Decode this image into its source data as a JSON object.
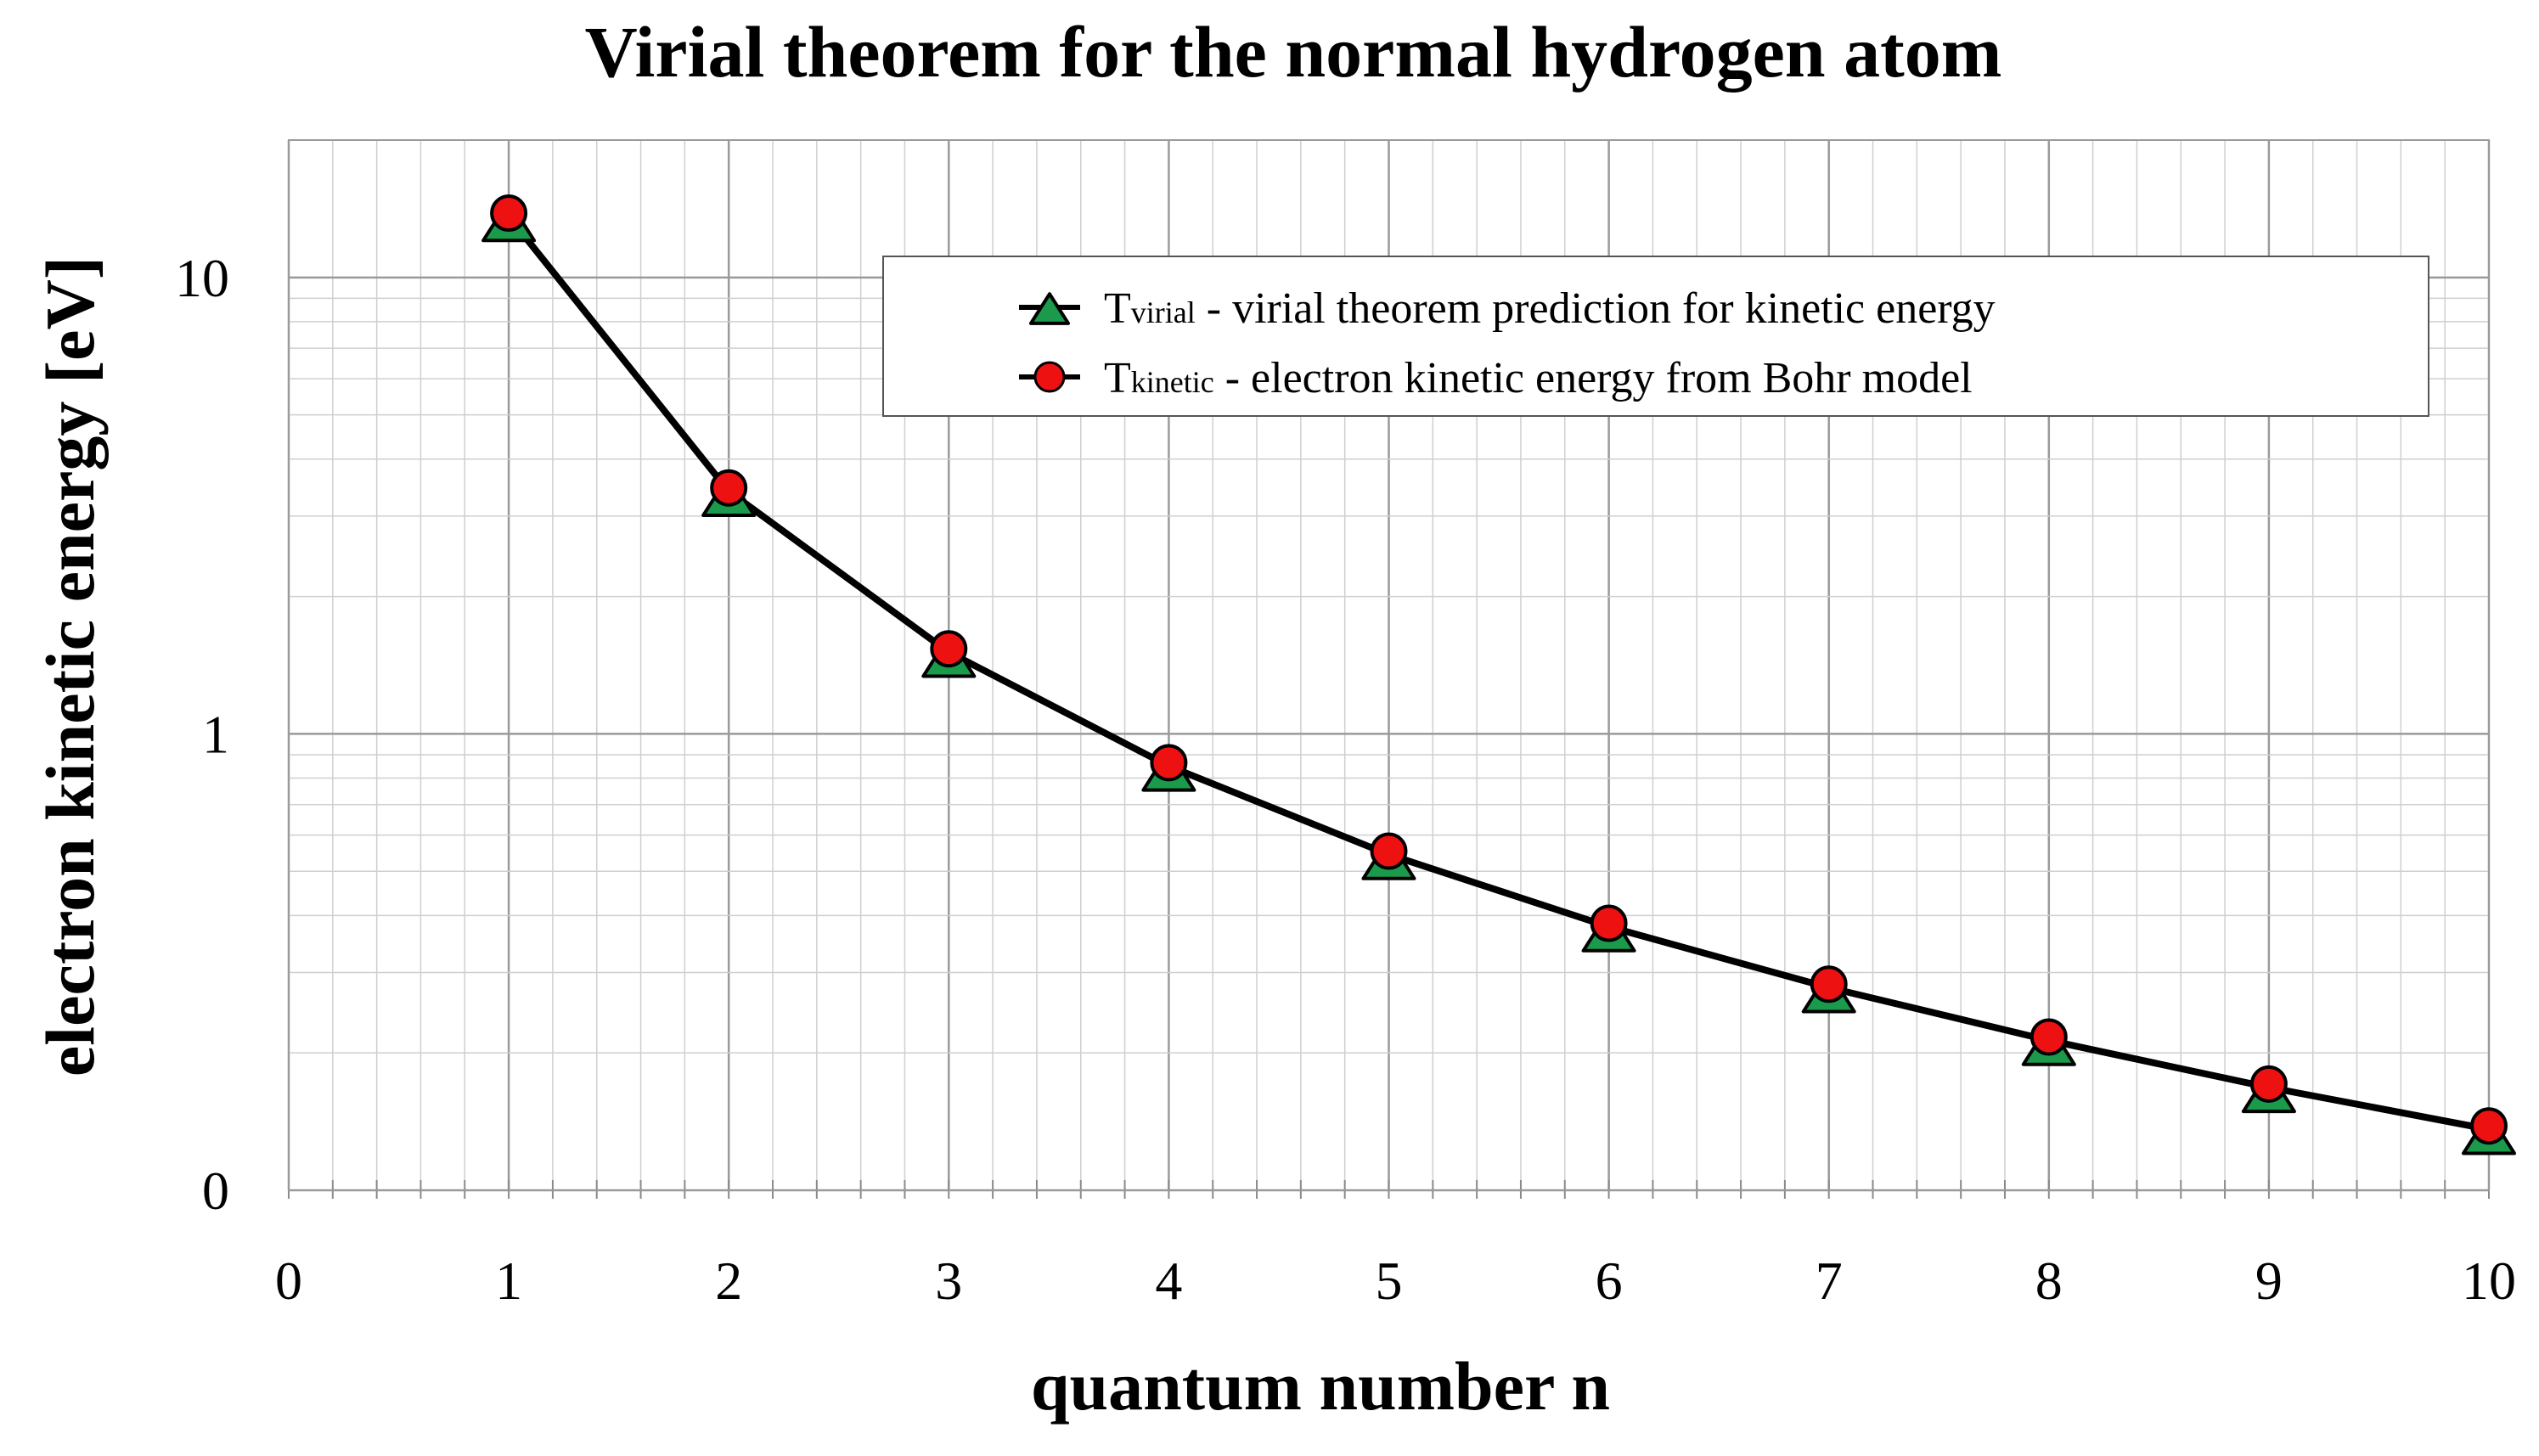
{
  "chart_data": {
    "type": "line",
    "title": "Virial theorem for the normal hydrogen atom",
    "xlabel": "quantum number n",
    "ylabel": "electron kinetic energy [eV]",
    "xlim": [
      0,
      10
    ],
    "x_ticks": [
      "0",
      "1",
      "2",
      "3",
      "4",
      "5",
      "6",
      "7",
      "8",
      "9",
      "10"
    ],
    "y_scale": "log",
    "ylim": [
      0.1,
      20
    ],
    "y_ticks": [
      {
        "value": 0.1,
        "label": "0"
      },
      {
        "value": 1,
        "label": "1"
      },
      {
        "value": 10,
        "label": "10"
      }
    ],
    "grid": true,
    "legend_position": "top-right",
    "x": [
      1,
      2,
      3,
      4,
      5,
      6,
      7,
      8,
      9,
      10
    ],
    "series": [
      {
        "name_main": "T",
        "name_sub": "virial",
        "name_rest": " - virial theorem prediction for kinetic energy",
        "marker": "triangle",
        "marker_color": "#1a9a4a",
        "line_color": "#000000",
        "values": [
          13.6,
          3.4,
          1.51,
          0.85,
          0.544,
          0.378,
          0.278,
          0.213,
          0.168,
          0.136
        ]
      },
      {
        "name_main": "T",
        "name_sub": "kinetic",
        "name_rest": " - electron kinetic energy from Bohr model",
        "marker": "circle",
        "marker_color": "#ee1111",
        "line_color": "#000000",
        "values": [
          13.6,
          3.4,
          1.51,
          0.85,
          0.544,
          0.378,
          0.278,
          0.213,
          0.168,
          0.136
        ]
      }
    ]
  }
}
